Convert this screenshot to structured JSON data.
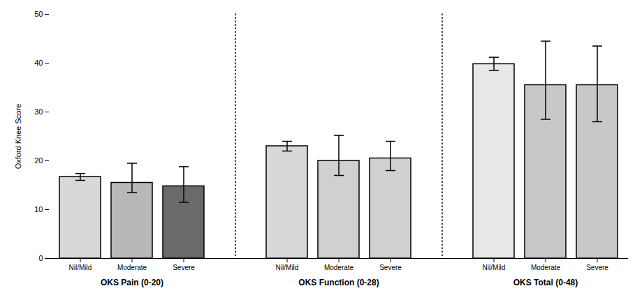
{
  "chart_data": {
    "type": "bar",
    "ylabel": "Oxford Knee Score",
    "categories": [
      "OKS Pain (0-20)",
      "OKS Function (0-28)",
      "OKS Total (0-48)"
    ],
    "series": [
      {
        "name": "Nil/Mild",
        "colors": [
          "#d8d8d8",
          "#d8d8d8",
          "#e8e8e8"
        ],
        "values": [
          16.7,
          23.0,
          39.8
        ],
        "ci_low": [
          16.0,
          22.0,
          38.5
        ],
        "ci_high": [
          17.4,
          24.0,
          41.2
        ]
      },
      {
        "name": "Moderate",
        "colors": [
          "#b8b8b8",
          "#d0d0d0",
          "#c8c8c8"
        ],
        "values": [
          15.5,
          20.0,
          35.5
        ],
        "ci_low": [
          13.5,
          17.0,
          28.5
        ],
        "ci_high": [
          19.5,
          25.2,
          44.5
        ]
      },
      {
        "name": "Severe",
        "colors": [
          "#6a6a6a",
          "#d0d0d0",
          "#c8c8c8"
        ],
        "values": [
          14.8,
          20.5,
          35.5
        ],
        "ci_low": [
          11.5,
          18.0,
          28.0
        ],
        "ci_high": [
          18.8,
          24.0,
          43.5
        ]
      }
    ],
    "ylim": [
      0,
      50
    ],
    "yticks": [
      0,
      10,
      20,
      30,
      40,
      50
    ],
    "grid": false
  }
}
